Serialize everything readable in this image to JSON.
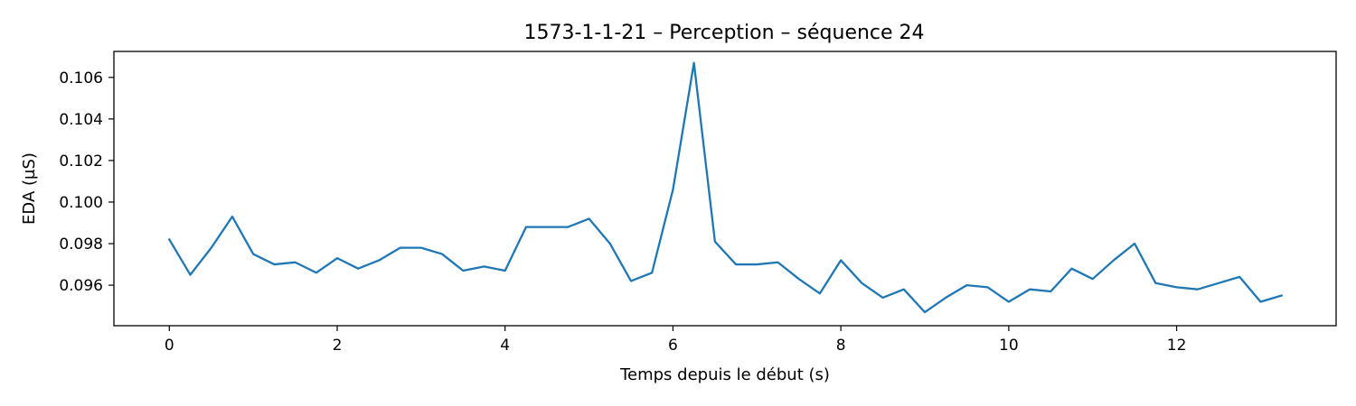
{
  "chart_data": {
    "type": "line",
    "title": "1573-1-1-21 – Perception – séquence 24",
    "xlabel": "Temps depuis le début (s)",
    "ylabel": "EDA (µS)",
    "xlim": [
      -0.66,
      13.9
    ],
    "ylim": [
      0.09405,
      0.10725
    ],
    "xticks": [
      0,
      2,
      4,
      6,
      8,
      10,
      12
    ],
    "xtick_labels": [
      "0",
      "2",
      "4",
      "6",
      "8",
      "10",
      "12"
    ],
    "yticks": [
      0.096,
      0.098,
      0.1,
      0.102,
      0.104,
      0.106
    ],
    "ytick_labels": [
      "0.096",
      "0.098",
      "0.100",
      "0.102",
      "0.104",
      "0.106"
    ],
    "grid": false,
    "legend": "none",
    "series": [
      {
        "color": "#1f77b4",
        "x": [
          0,
          0.25,
          0.5,
          0.75,
          1.0,
          1.25,
          1.5,
          1.75,
          2.0,
          2.25,
          2.5,
          2.75,
          3.0,
          3.25,
          3.5,
          3.75,
          4.0,
          4.25,
          4.5,
          4.75,
          5.0,
          5.25,
          5.5,
          5.75,
          6.0,
          6.25,
          6.5,
          6.75,
          7.0,
          7.25,
          7.5,
          7.75,
          8.0,
          8.25,
          8.5,
          8.75,
          9.0,
          9.25,
          9.5,
          9.75,
          10.0,
          10.25,
          10.5,
          10.75,
          11.0,
          11.25,
          11.5,
          11.75,
          12.0,
          12.25,
          12.5,
          12.75,
          13.0,
          13.25
        ],
        "y": [
          0.0982,
          0.0965,
          0.0978,
          0.0993,
          0.0975,
          0.097,
          0.0971,
          0.0966,
          0.0973,
          0.0968,
          0.0972,
          0.0978,
          0.0978,
          0.0975,
          0.0967,
          0.0969,
          0.0967,
          0.0988,
          0.0988,
          0.0988,
          0.0992,
          0.098,
          0.0962,
          0.0966,
          0.1006,
          0.1067,
          0.0981,
          0.097,
          0.097,
          0.0971,
          0.0963,
          0.0956,
          0.0972,
          0.0961,
          0.0954,
          0.0958,
          0.0947,
          0.0954,
          0.096,
          0.0959,
          0.0952,
          0.0958,
          0.0957,
          0.0968,
          0.0963,
          0.0972,
          0.098,
          0.0961,
          0.0959,
          0.0958,
          0.0961,
          0.0964,
          0.0952,
          0.0955
        ]
      }
    ]
  }
}
